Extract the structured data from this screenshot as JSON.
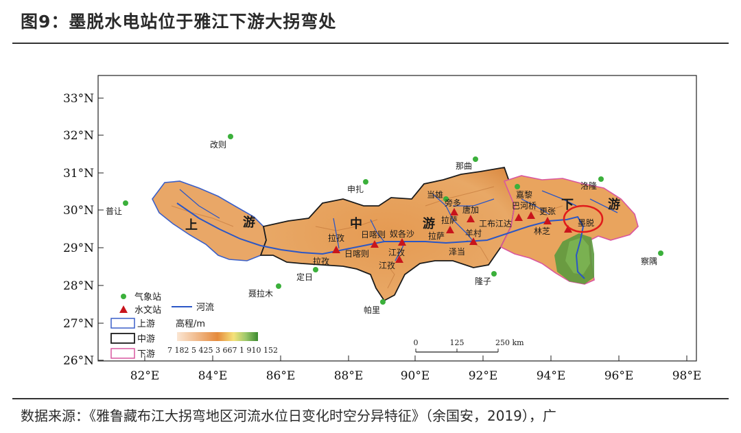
{
  "title": "图9：墨脱水电站位于雅江下游大拐弯处",
  "source": "数据来源：《雅鲁藏布江大拐弯地区河流水位日变化时空分异特征》（余国安，2019），广",
  "map": {
    "lat_ticks": [
      "33°N",
      "32°N",
      "31°N",
      "30°N",
      "29°N",
      "28°N",
      "27°N",
      "26°N"
    ],
    "lon_ticks": [
      "82°E",
      "84°E",
      "86°E",
      "88°E",
      "90°E",
      "92°E",
      "94°E",
      "96°E",
      "98°E"
    ],
    "regions": {
      "upper": "上",
      "upper2": "游",
      "middle": "中",
      "middle2": "游",
      "lower": "下",
      "lower2": "游"
    },
    "weather_stations": [
      "改则",
      "普让",
      "申扎",
      "那曲",
      "当雄",
      "嘉黎",
      "洛隆",
      "察隅",
      "隆子",
      "帕里",
      "定日",
      "聂拉木"
    ],
    "hydro_stations": [
      "拉孜",
      "日喀则",
      "奴各沙",
      "江孜",
      "羊村",
      "拉萨",
      "唐加",
      "工布江达",
      "巴河桥",
      "更张",
      "林芝",
      "墨脱"
    ],
    "other_labels": [
      "旁多",
      "拉孜",
      "日喀则",
      "拉孜",
      "江孜",
      "拉萨",
      "拉萨",
      "羊村",
      "泽当",
      "林芝"
    ],
    "legend": {
      "weather": "气象站",
      "hydro": "水文站",
      "river": "河流",
      "upper": "上游",
      "middle": "中游",
      "lower": "下游",
      "elevation_title": "高程/m",
      "elevation_values": "7 182 5 425 3 667 1 910 152"
    },
    "scale": {
      "zero": "0",
      "mid": "125",
      "end": "250 km"
    },
    "colors": {
      "upper_border": "#3a5fc8",
      "middle_border": "#1a1a1a",
      "lower_border": "#d9569f",
      "river": "#2a56c6",
      "station_weather": "#3bb03b",
      "station_hydro": "#c8141c",
      "highlight": "#e01b1b"
    }
  }
}
